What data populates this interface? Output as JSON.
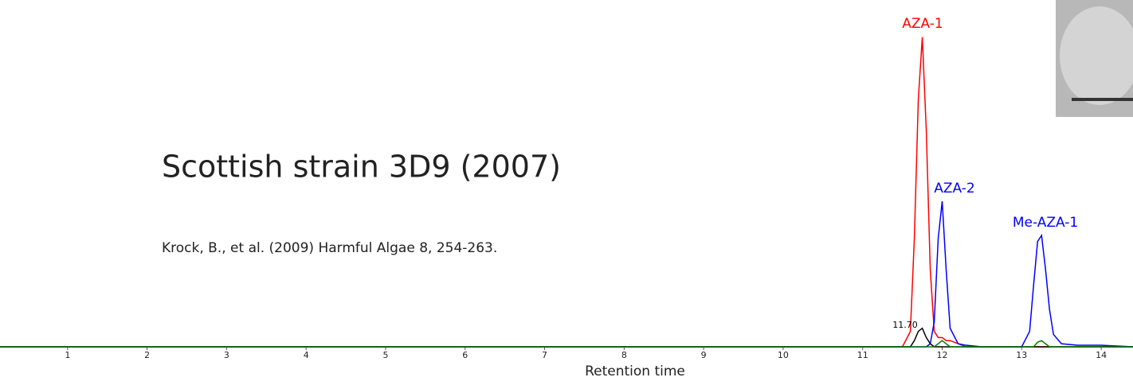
{
  "chart_data": {
    "type": "line",
    "title": "Scottish strain 3D9 (2007)",
    "subtitle": "Krock, B., et al. (2009) Harmful Algae 8, 254-263.",
    "x_label": "Retention time",
    "annotations": [
      "AZA-1",
      "AZA-2",
      "Me-AZA-1",
      "11.70"
    ],
    "x": [
      0.15,
      11.0,
      11.5,
      11.6,
      11.65,
      11.7,
      11.75,
      11.8,
      11.85,
      11.9,
      11.95,
      12.0,
      12.05,
      12.1,
      12.2,
      12.3,
      12.5,
      13.0,
      13.1,
      13.15,
      13.2,
      13.25,
      13.3,
      13.35,
      13.4,
      13.5,
      13.7,
      14.0,
      14.4
    ],
    "series": [
      {
        "color": "#ff0000",
        "values": [
          0,
          0,
          0,
          5,
          35,
          80,
          100,
          70,
          25,
          5,
          3,
          3,
          2,
          2,
          1,
          0,
          0,
          0,
          0,
          0,
          0,
          0,
          0,
          0,
          0,
          0,
          0,
          0,
          0
        ]
      },
      {
        "color": "#0000ff",
        "values": [
          0,
          0,
          0,
          0,
          0,
          0,
          0,
          0,
          1,
          8,
          35,
          47,
          25,
          6,
          1,
          0.5,
          0,
          0,
          5,
          20,
          34,
          36,
          25,
          12,
          4,
          1,
          0.5,
          0.5,
          0
        ]
      },
      {
        "color": "#000000",
        "values": [
          0,
          0,
          0,
          0,
          2,
          5,
          6,
          3,
          1,
          0,
          0,
          0,
          0,
          0,
          0,
          0,
          0,
          0,
          0,
          0,
          0,
          0,
          0,
          0,
          0,
          0,
          0,
          0,
          0
        ]
      },
      {
        "color": "#008000",
        "values": [
          0,
          0,
          0,
          0,
          0,
          0,
          0,
          0,
          0,
          0,
          1,
          2,
          1,
          0,
          0,
          0,
          0,
          0,
          0,
          0,
          1.5,
          2,
          1,
          0,
          0,
          0,
          0,
          0,
          0
        ]
      }
    ],
    "xlim": [
      0.15,
      14.4
    ],
    "ylim": [
      0,
      112
    ],
    "xticks": [
      1,
      2,
      3,
      4,
      5,
      6,
      7,
      8,
      9,
      10,
      11,
      12,
      13,
      14
    ]
  }
}
